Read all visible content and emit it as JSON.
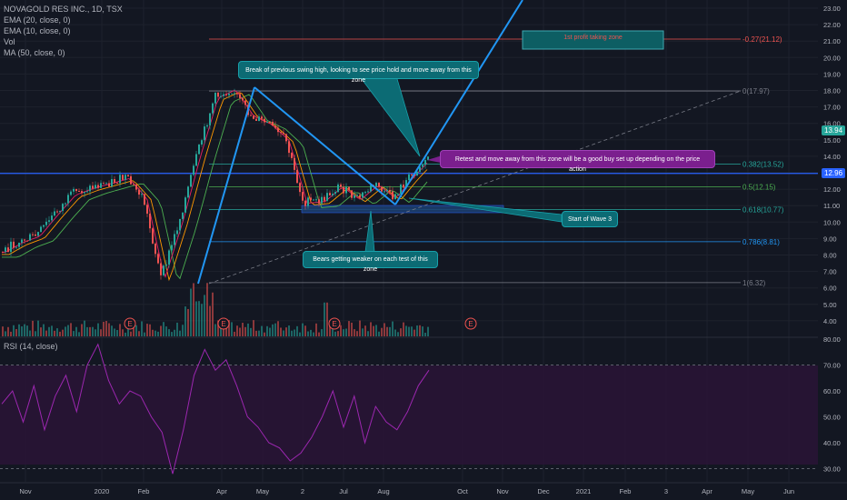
{
  "legend": {
    "symbol": "NOVAGOLD RES INC., 1D, TSX",
    "ema20": "EMA (20, close, 0)",
    "ema10": "EMA (10, close, 0)",
    "vol": "Vol",
    "ma50": "MA (50, close, 0)",
    "rsi": "RSI (14, close)"
  },
  "price_tags": {
    "last": "13.94",
    "line": "12.96"
  },
  "annotations": {
    "swing_high": "Break of previous swing high, looking to see price hold and move away from this zone",
    "retest": "Retest and move away from this zone will be a good buy set up depending on the price action",
    "wave3": "Start of Wave 3",
    "bears": "Bears getting weaker on each test of this zone",
    "profit_zone": "1st profit taking zone"
  },
  "colors": {
    "background": "#131722",
    "up": "#26a69a",
    "down": "#ef5350",
    "trendline": "#2196f3",
    "ema20": "#ff9800",
    "ema10": "#e91e63",
    "ma50": "#4caf50",
    "rsi": "#9c27b0",
    "rsi_band": "#2a1436"
  },
  "chart_data": [
    {
      "type": "candlestick",
      "title": "NOVAGOLD RES INC., 1D, TSX",
      "y_axis_ticks": [
        "23.00",
        "22.00",
        "21.00",
        "20.00",
        "19.00",
        "18.00",
        "17.00",
        "16.00",
        "15.00",
        "14.00",
        "13.00",
        "12.00",
        "11.00",
        "10.00",
        "9.00",
        "8.00",
        "7.00",
        "6.00",
        "5.00",
        "4.00"
      ],
      "ylim": [
        3.4,
        23.6
      ],
      "x_axis_ticks": [
        "Nov",
        "2020",
        "Feb",
        "Apr",
        "May",
        "2",
        "Jul",
        "Aug",
        "Oct",
        "Nov",
        "Dec",
        "2021",
        "Feb",
        "3",
        "Apr",
        "May",
        "Jun"
      ],
      "close_series": [
        {
          "date": "Nov",
          "v": 8.2
        },
        {
          "date": "mid Nov",
          "v": 8.8
        },
        {
          "date": "Dec",
          "v": 9.2
        },
        {
          "date": "mid Dec",
          "v": 10.5
        },
        {
          "date": "2020",
          "v": 11.7
        },
        {
          "date": "mid Jan",
          "v": 12.1
        },
        {
          "date": "Feb",
          "v": 12.4
        },
        {
          "date": "mid Feb",
          "v": 12.7
        },
        {
          "date": "Mar",
          "v": 11.5
        },
        {
          "date": "mid Mar",
          "v": 6.6
        },
        {
          "date": "late Mar",
          "v": 10.0
        },
        {
          "date": "Apr",
          "v": 14.0
        },
        {
          "date": "mid Apr",
          "v": 17.6
        },
        {
          "date": "late Apr",
          "v": 18.1
        },
        {
          "date": "May",
          "v": 16.5
        },
        {
          "date": "mid May",
          "v": 16.0
        },
        {
          "date": "late May",
          "v": 15.0
        },
        {
          "date": "Jun",
          "v": 11.2
        },
        {
          "date": "mid Jun",
          "v": 11.3
        },
        {
          "date": "Jul",
          "v": 12.2
        },
        {
          "date": "mid Jul",
          "v": 11.4
        },
        {
          "date": "Aug",
          "v": 12.3
        },
        {
          "date": "mid Aug",
          "v": 11.5
        },
        {
          "date": "late Aug",
          "v": 12.8
        },
        {
          "date": "Sep",
          "v": 13.94
        }
      ],
      "fib_levels": [
        {
          "label": "-0.27(21.12)",
          "value": 21.12
        },
        {
          "label": "0(17.97)",
          "value": 17.97
        },
        {
          "label": "0.382(13.52)",
          "value": 13.52
        },
        {
          "label": "0.5(12.15)",
          "value": 12.15
        },
        {
          "label": "0.618(10.77)",
          "value": 10.77
        },
        {
          "label": "0.786(8.81)",
          "value": 8.81
        },
        {
          "label": "1(6.32)",
          "value": 6.32
        }
      ],
      "horizontal_line": 12.96,
      "last_price": 13.94,
      "earnings_markers": [
        "E",
        "E",
        "E",
        "E"
      ]
    },
    {
      "type": "line",
      "title": "RSI (14, close)",
      "y_axis_ticks": [
        "80.00",
        "70.00",
        "60.00",
        "50.00",
        "40.00",
        "30.00"
      ],
      "ylim": [
        26,
        82
      ],
      "bands": [
        70,
        30
      ],
      "values": [
        55,
        60,
        48,
        62,
        45,
        58,
        66,
        52,
        70,
        78,
        64,
        55,
        60,
        58,
        50,
        44,
        28,
        45,
        66,
        76,
        68,
        72,
        62,
        50,
        46,
        40,
        38,
        33,
        36,
        42,
        50,
        60,
        46,
        58,
        40,
        54,
        48,
        45,
        52,
        62,
        68
      ]
    }
  ]
}
